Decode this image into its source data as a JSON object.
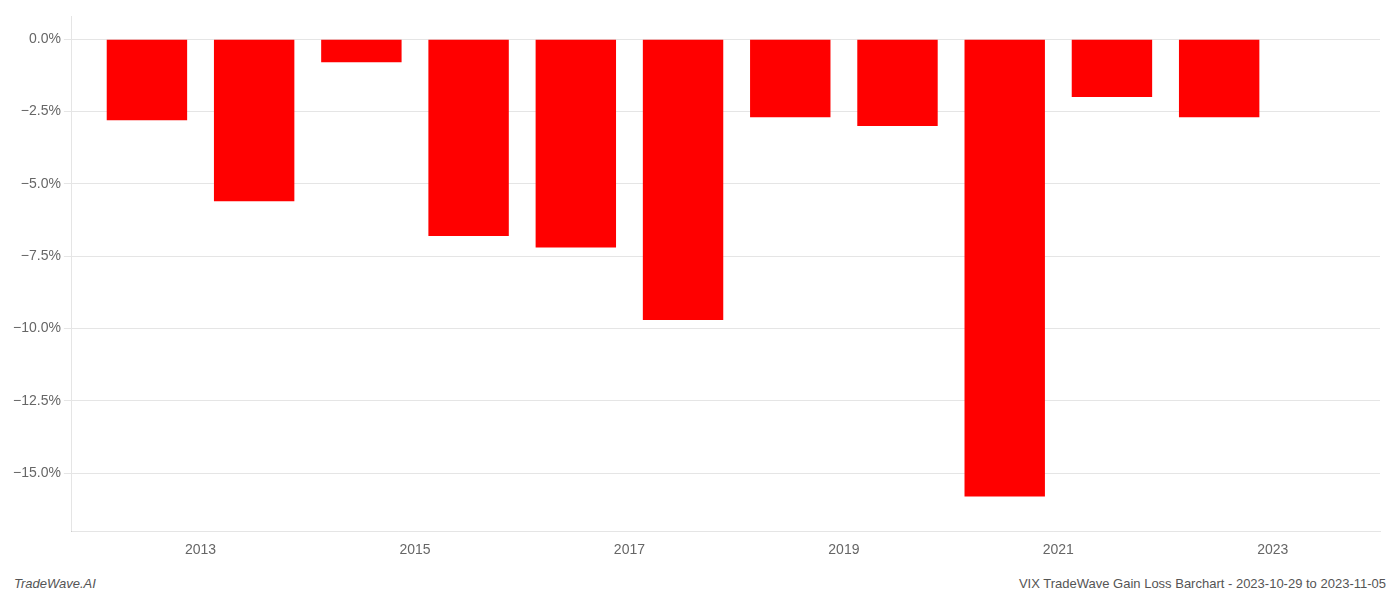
{
  "chart_data": {
    "type": "bar",
    "x": [
      2012.5,
      2013.5,
      2014.5,
      2015.5,
      2016.5,
      2017.5,
      2018.5,
      2019.5,
      2020.5,
      2021.5,
      2022.5
    ],
    "values": [
      -2.8,
      -5.6,
      -0.8,
      -6.8,
      -7.2,
      -9.7,
      -2.7,
      -3.0,
      -15.8,
      -2.0,
      -2.7
    ],
    "color": "#ff0000",
    "xlim": [
      2011.8,
      2024.0
    ],
    "xticks": [
      2013,
      2015,
      2017,
      2019,
      2021,
      2023
    ],
    "ylim": [
      -17.0,
      0.8
    ],
    "yticks": [
      {
        "value": 0.0,
        "label": "0.0%"
      },
      {
        "value": -2.5,
        "label": "−2.5%"
      },
      {
        "value": -5.0,
        "label": "−5.0%"
      },
      {
        "value": -7.5,
        "label": "−7.5%"
      },
      {
        "value": -10.0,
        "label": "−10.0%"
      },
      {
        "value": -12.5,
        "label": "−12.5%"
      },
      {
        "value": -15.0,
        "label": "−15.0%"
      }
    ],
    "grid": "y",
    "annotations": [
      "TradeWave.AI",
      "VIX TradeWave Gain Loss Barchart - 2023-10-29 to 2023-11-05"
    ]
  }
}
